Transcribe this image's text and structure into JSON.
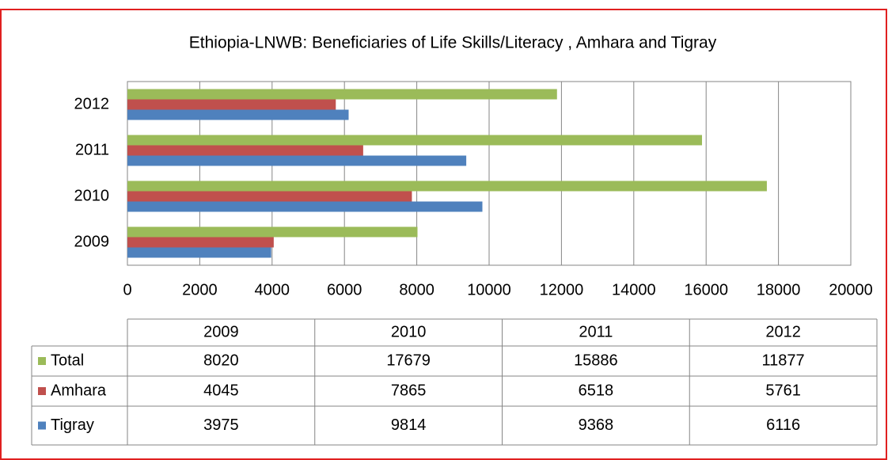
{
  "chart_data": {
    "type": "bar",
    "orientation": "horizontal",
    "title": "Ethiopia-LNWB:  Beneficiaries of Life Skills/Literacy , Amhara and Tigray",
    "categories": [
      "2009",
      "2010",
      "2011",
      "2012"
    ],
    "series": [
      {
        "name": "Total",
        "color": "#9bbb59",
        "values": [
          8020,
          17679,
          15886,
          11877
        ]
      },
      {
        "name": "Amhara",
        "color": "#c0504d",
        "values": [
          4045,
          7865,
          6518,
          5761
        ]
      },
      {
        "name": "Tigray",
        "color": "#4f81bd",
        "values": [
          3975,
          9814,
          9368,
          6116
        ]
      }
    ],
    "xlim": [
      0,
      20000
    ],
    "xticks": [
      0,
      2000,
      4000,
      6000,
      8000,
      10000,
      12000,
      14000,
      16000,
      18000,
      20000
    ],
    "grid": true,
    "data_table": true
  }
}
